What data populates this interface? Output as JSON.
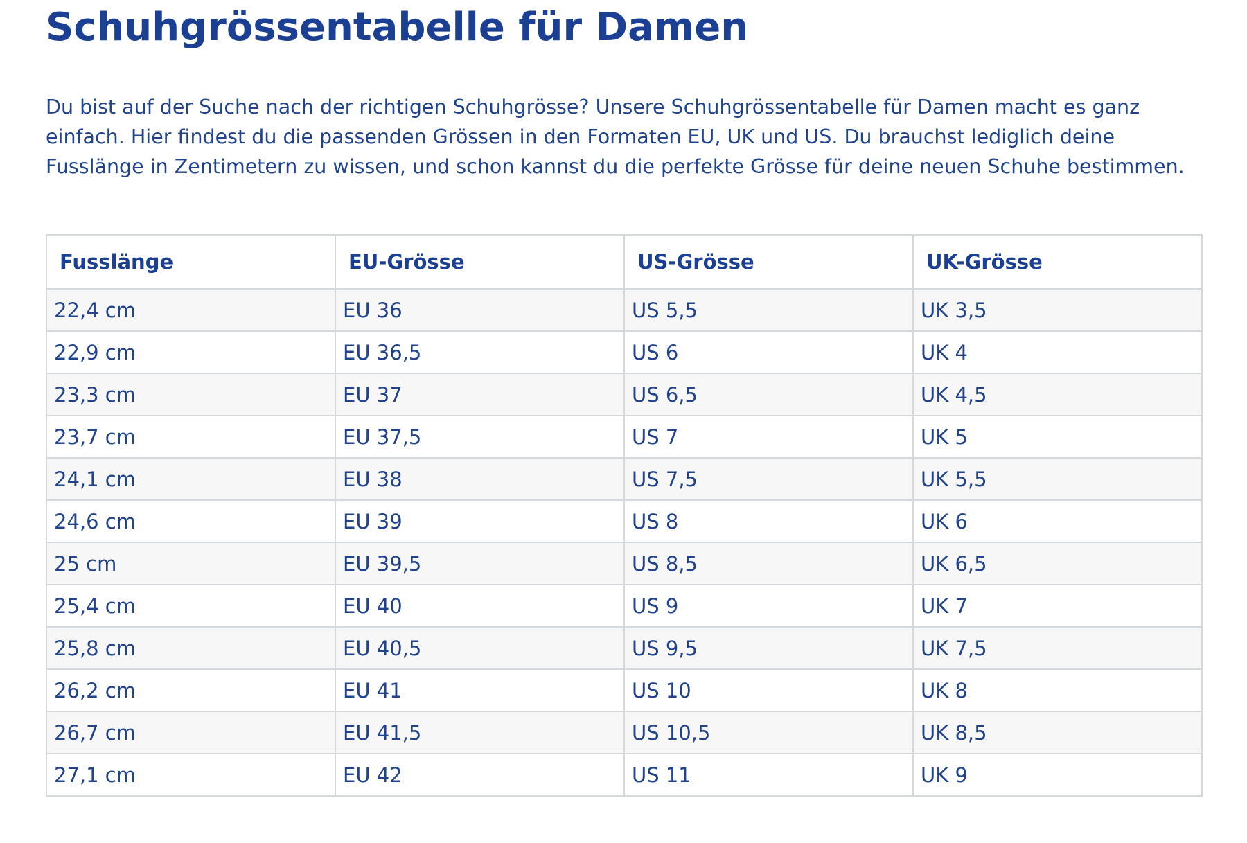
{
  "page": {
    "title": "Schuhgrössentabelle für Damen",
    "intro": "Du bist auf der Suche nach der richtigen Schuhgrösse? Unsere Schuhgrössentabelle für Damen macht es ganz einfach. Hier findest du die passenden Grössen in den Formaten EU, UK und US. Du brauchst lediglich deine Fusslänge in Zentimetern zu wissen, und schon kannst du die perfekte Grösse für deine neuen Schuhe bestimmen."
  },
  "colors": {
    "heading": "#1b3f92",
    "text": "#20438c",
    "border": "#d5d8dd",
    "row_stripe": "#f7f7f8"
  },
  "table": {
    "headers": [
      "Fusslänge",
      "EU-Grösse",
      "US-Grösse",
      "UK-Grösse"
    ],
    "rows": [
      [
        "22,4 cm",
        "EU 36",
        "US 5,5",
        "UK 3,5"
      ],
      [
        "22,9 cm",
        "EU 36,5",
        "US 6",
        "UK 4"
      ],
      [
        "23,3 cm",
        "EU 37",
        "US 6,5",
        "UK 4,5"
      ],
      [
        "23,7 cm",
        "EU 37,5",
        "US 7",
        "UK 5"
      ],
      [
        "24,1 cm",
        "EU 38",
        "US 7,5",
        "UK 5,5"
      ],
      [
        "24,6 cm",
        "EU 39",
        "US 8",
        "UK 6"
      ],
      [
        "25 cm",
        "EU 39,5",
        "US 8,5",
        "UK 6,5"
      ],
      [
        "25,4 cm",
        "EU 40",
        "US 9",
        "UK 7"
      ],
      [
        "25,8 cm",
        "EU 40,5",
        "US 9,5",
        "UK 7,5"
      ],
      [
        "26,2 cm",
        "EU 41",
        "US 10",
        "UK 8"
      ],
      [
        "26,7 cm",
        "EU 41,5",
        "US 10,5",
        "UK 8,5"
      ],
      [
        "27,1 cm",
        "EU 42",
        "US 11",
        "UK 9"
      ]
    ]
  }
}
